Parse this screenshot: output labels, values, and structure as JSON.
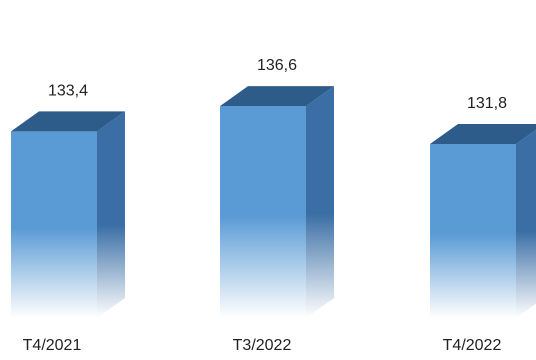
{
  "chart_data": {
    "type": "bar",
    "categories": [
      "T4/2021",
      "T3/2022",
      "T4/2022"
    ],
    "values": [
      133.4,
      136.6,
      131.8
    ],
    "value_labels": [
      "133,4",
      "136,6",
      "131,8"
    ],
    "title": "",
    "xlabel": "",
    "ylabel": "",
    "style": "3d-gradient-columns",
    "grid": false,
    "legend": "none"
  },
  "colors": {
    "front_top": "#5b9bd5",
    "top_face": "#2e5c8a",
    "side_face": "#3a6ea5",
    "fade_to": "#ffffff"
  }
}
